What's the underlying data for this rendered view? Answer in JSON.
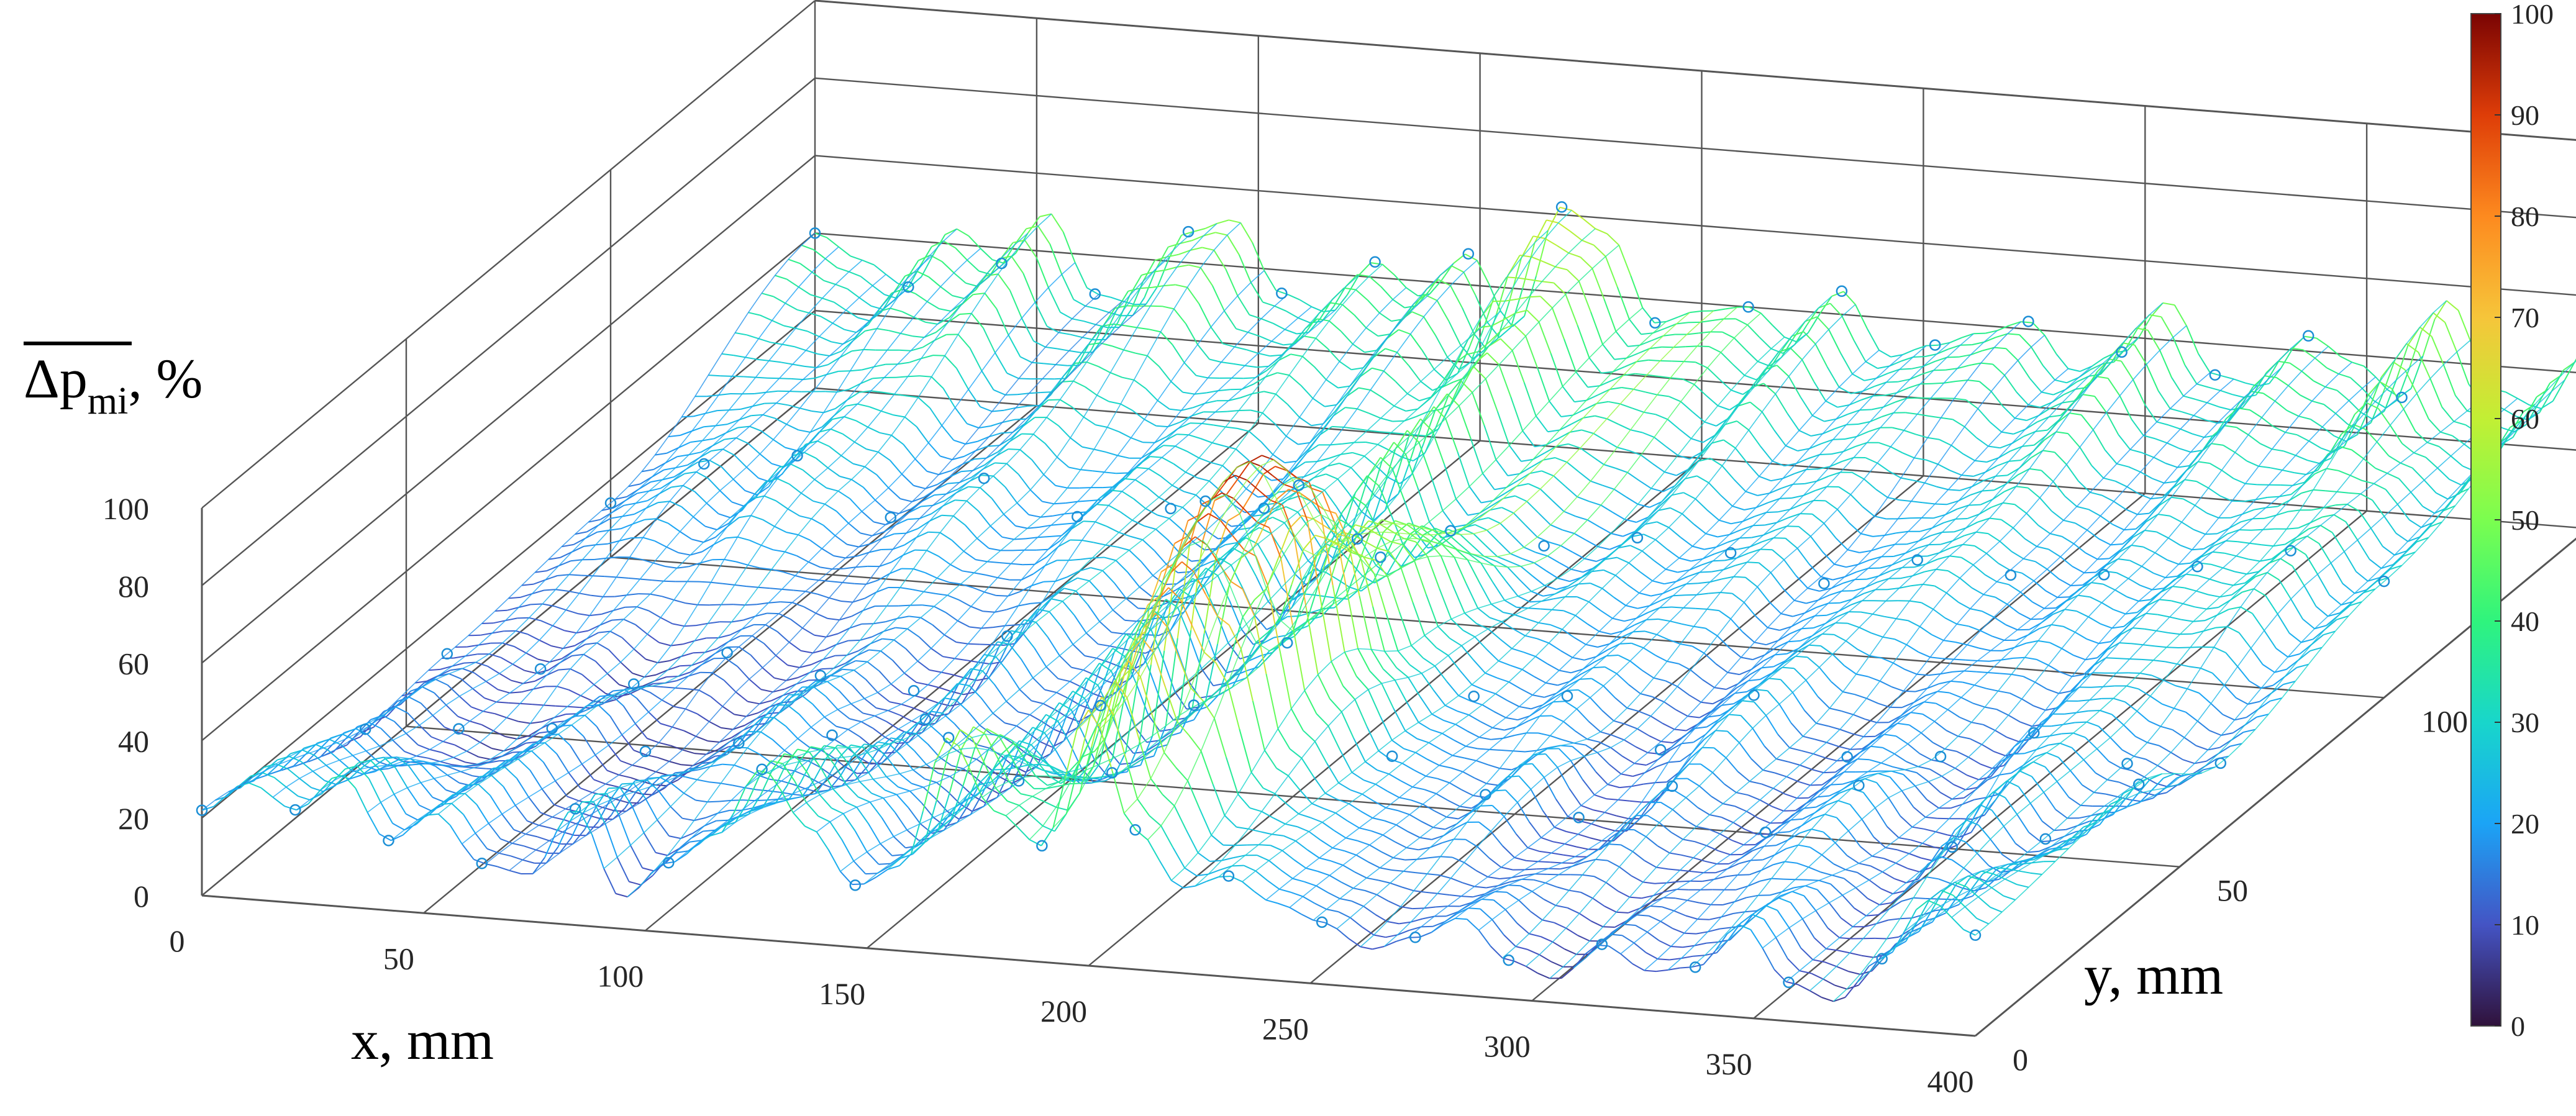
{
  "chart_data": {
    "type": "surface-mesh-3d",
    "title": "",
    "xlabel": "x, mm",
    "ylabel": "y, mm",
    "zlabel": {
      "main": "Δp",
      "sub": "mi",
      "suffix": ", %"
    },
    "x_ticks": [
      0,
      50,
      100,
      150,
      200,
      250,
      300,
      350,
      400
    ],
    "y_ticks": [
      0,
      50,
      100
    ],
    "z_ticks": [
      0,
      20,
      40,
      60,
      80,
      100
    ],
    "xlim": [
      0,
      400
    ],
    "ylim": [
      0,
      150
    ],
    "zlim": [
      0,
      100
    ],
    "colorbar": {
      "ticks": [
        0,
        10,
        20,
        30,
        40,
        50,
        60,
        70,
        80,
        90,
        100
      ],
      "range": [
        0,
        100
      ],
      "colormap": "turbo"
    },
    "grid": true,
    "surface_ridges": [
      {
        "y": 0,
        "z": [
          22,
          30,
          24,
          34,
          18,
          26,
          14,
          12,
          30,
          8,
          18,
          26,
          44,
          30,
          16,
          22,
          56,
          38,
          30,
          66,
          36,
          22,
          26,
          20,
          16,
          10,
          14,
          20,
          10,
          6,
          16,
          10,
          12,
          24,
          10,
          6,
          18,
          34,
          26
        ]
      },
      {
        "y": 40,
        "z": [
          8,
          18,
          10,
          6,
          12,
          20,
          8,
          6,
          12,
          24,
          16,
          10,
          22,
          14,
          8,
          30,
          12,
          18,
          84,
          96,
          90,
          40,
          22,
          18,
          14,
          24,
          10,
          8,
          20,
          14,
          10,
          18,
          24,
          12,
          10,
          26,
          14,
          18,
          30
        ]
      },
      {
        "y": 60,
        "z": [
          10,
          12,
          8,
          14,
          6,
          10,
          16,
          8,
          12,
          18,
          10,
          8,
          26,
          14,
          10,
          34,
          12,
          20,
          30,
          58,
          54,
          30,
          20,
          16,
          22,
          14,
          10,
          18,
          26,
          14,
          12,
          20,
          14,
          10,
          22,
          24,
          16,
          12,
          18
        ]
      },
      {
        "y": 100,
        "z": [
          14,
          20,
          26,
          18,
          30,
          24,
          16,
          22,
          28,
          18,
          20,
          30,
          24,
          16,
          26,
          32,
          20,
          48,
          24,
          30,
          22,
          18,
          26,
          20,
          24,
          28,
          18,
          22,
          26,
          30,
          24,
          18,
          26,
          22,
          30,
          28,
          36,
          22,
          30
        ]
      },
      {
        "y": 150,
        "z": [
          40,
          34,
          28,
          44,
          36,
          50,
          30,
          28,
          48,
          52,
          34,
          30,
          44,
          36,
          48,
          30,
          62,
          56,
          34,
          38,
          40,
          32,
          46,
          30,
          34,
          38,
          42,
          30,
          36,
          50,
          32,
          30,
          44,
          38,
          30,
          56,
          34,
          30,
          46
        ]
      }
    ]
  }
}
